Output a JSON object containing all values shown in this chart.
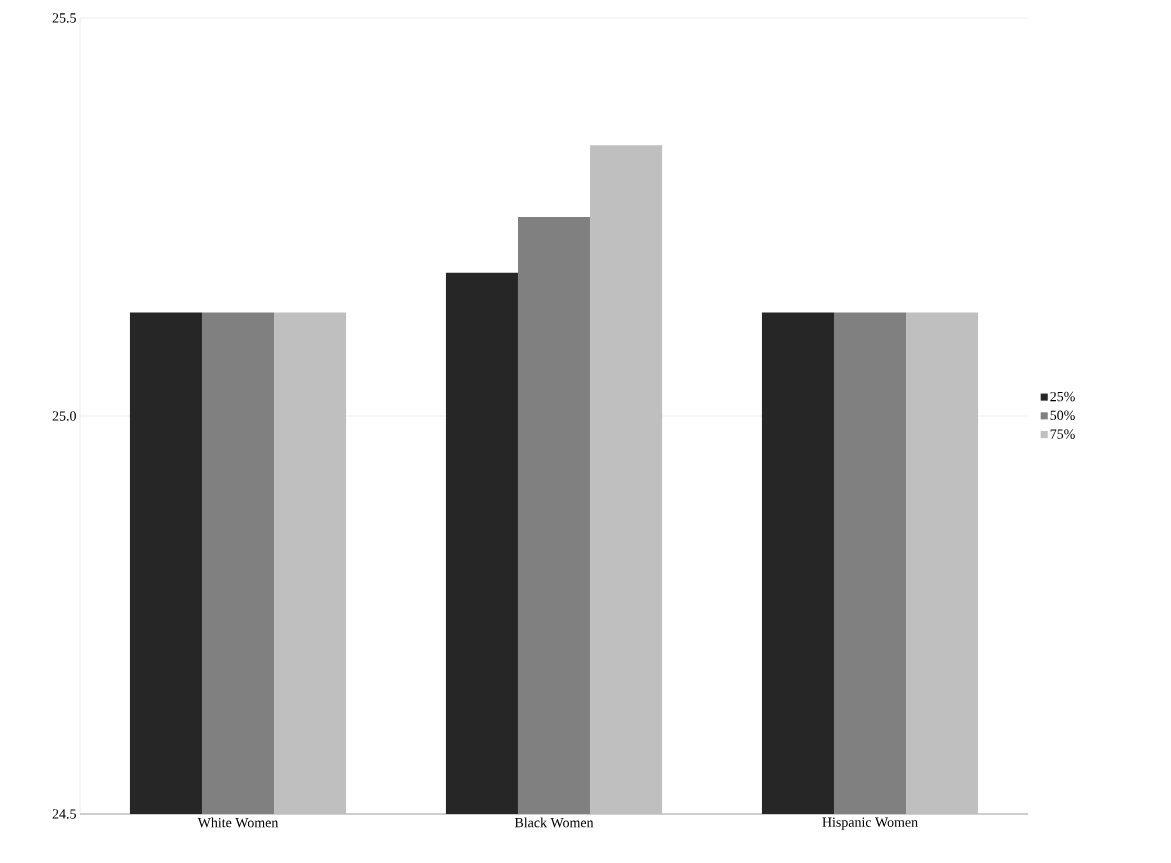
{
  "chart_data": {
    "type": "bar",
    "categories": [
      "White Women",
      "Black Women",
      "Hispanic Women"
    ],
    "series": [
      {
        "name": "25%",
        "color": "#262626",
        "values": [
          25.13,
          25.18,
          25.13
        ]
      },
      {
        "name": "50%",
        "color": "#808080",
        "values": [
          25.13,
          25.25,
          25.13
        ]
      },
      {
        "name": "75%",
        "color": "#bfbfbf",
        "values": [
          25.13,
          25.34,
          25.13
        ]
      }
    ],
    "ylim": [
      24.5,
      25.5
    ],
    "yticks": [
      24.5,
      {
        "value": 25,
        "label": "25.0"
      },
      25.5
    ],
    "grid": "y",
    "legend": "right"
  }
}
